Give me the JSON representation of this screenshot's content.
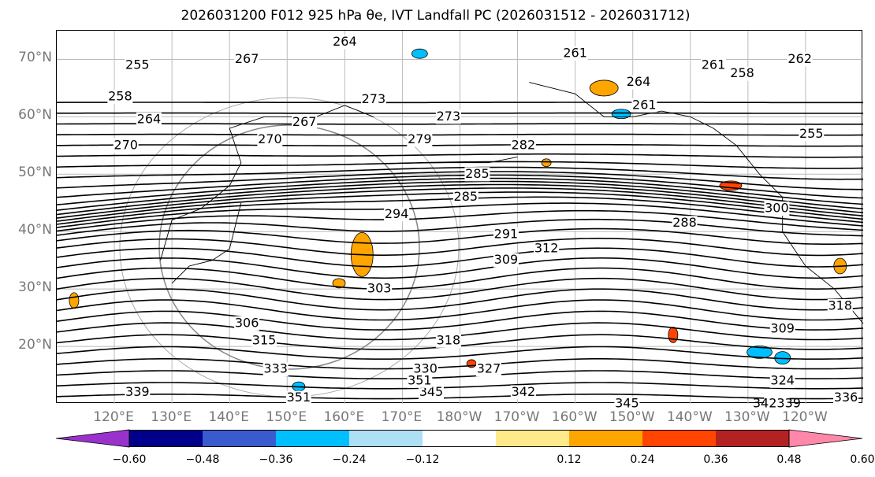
{
  "title": "2026031200 F012 925 hPa θe, IVT Landfall PC (2026031512 - 2026031712)",
  "chart_data": {
    "type": "heatmap",
    "map": "North Pacific, 925 hPa equivalent potential temperature contours with shaded IVT landfall principal component",
    "lat_ticks": [
      "20°N",
      "30°N",
      "40°N",
      "50°N",
      "60°N",
      "70°N"
    ],
    "lon_ticks": [
      "120°E",
      "130°E",
      "140°E",
      "150°E",
      "160°E",
      "170°E",
      "180°W",
      "170°W",
      "160°W",
      "150°W",
      "140°W",
      "130°W",
      "120°W"
    ],
    "contour_labels": [
      {
        "text": "264",
        "lon": 160,
        "lat": 73
      },
      {
        "text": "267",
        "lon": 143,
        "lat": 70
      },
      {
        "text": "255",
        "lon": 124,
        "lat": 69
      },
      {
        "text": "258",
        "lon": 121,
        "lat": 63.5
      },
      {
        "text": "264",
        "lon": 126,
        "lat": 59.5
      },
      {
        "text": "270",
        "lon": 122,
        "lat": 55
      },
      {
        "text": "270",
        "lon": 147,
        "lat": 56
      },
      {
        "text": "267",
        "lon": 153,
        "lat": 59
      },
      {
        "text": "273",
        "lon": 165,
        "lat": 63
      },
      {
        "text": "273",
        "lon": 178,
        "lat": 60
      },
      {
        "text": "279",
        "lon": 173,
        "lat": 56
      },
      {
        "text": "282",
        "lon": -169,
        "lat": 55
      },
      {
        "text": "285",
        "lon": -177,
        "lat": 50
      },
      {
        "text": "285",
        "lon": -179,
        "lat": 46
      },
      {
        "text": "294",
        "lon": 169,
        "lat": 43
      },
      {
        "text": "291",
        "lon": -172,
        "lat": 39.5
      },
      {
        "text": "309",
        "lon": -172,
        "lat": 35
      },
      {
        "text": "312",
        "lon": -165,
        "lat": 37
      },
      {
        "text": "288",
        "lon": -141,
        "lat": 41.5
      },
      {
        "text": "261",
        "lon": -160,
        "lat": 71
      },
      {
        "text": "261",
        "lon": -136,
        "lat": 69
      },
      {
        "text": "258",
        "lon": -131,
        "lat": 67.5
      },
      {
        "text": "264",
        "lon": -149,
        "lat": 66
      },
      {
        "text": "261",
        "lon": -148,
        "lat": 62
      },
      {
        "text": "262",
        "lon": -121,
        "lat": 70
      },
      {
        "text": "255",
        "lon": -119,
        "lat": 57
      },
      {
        "text": "300",
        "lon": -125,
        "lat": 44
      },
      {
        "text": "303",
        "lon": 166,
        "lat": 30
      },
      {
        "text": "306",
        "lon": 143,
        "lat": 24
      },
      {
        "text": "315",
        "lon": 146,
        "lat": 21
      },
      {
        "text": "318",
        "lon": 178,
        "lat": 21
      },
      {
        "text": "330",
        "lon": 174,
        "lat": 16
      },
      {
        "text": "333",
        "lon": 148,
        "lat": 16
      },
      {
        "text": "327",
        "lon": -175,
        "lat": 16
      },
      {
        "text": "342",
        "lon": -169,
        "lat": 12
      },
      {
        "text": "345",
        "lon": 175,
        "lat": 12
      },
      {
        "text": "351",
        "lon": 173,
        "lat": 14
      },
      {
        "text": "351",
        "lon": 152,
        "lat": 11
      },
      {
        "text": "339",
        "lon": 124,
        "lat": 12
      },
      {
        "text": "345",
        "lon": -151,
        "lat": 10
      },
      {
        "text": "324",
        "lon": -124,
        "lat": 14
      },
      {
        "text": "309",
        "lon": -124,
        "lat": 23
      },
      {
        "text": "342339",
        "lon": -125,
        "lat": 10
      },
      {
        "text": "336",
        "lon": -113,
        "lat": 11
      },
      {
        "text": "318",
        "lon": -114,
        "lat": 27
      }
    ],
    "colorbar": {
      "ticks": [
        "−0.60",
        "−0.48",
        "−0.36",
        "−0.24",
        "−0.12",
        "0.12",
        "0.24",
        "0.36",
        "0.48",
        "0.60"
      ],
      "colors": [
        "#9932CC",
        "#00008B",
        "#3A5BCD",
        "#00BFFF",
        "#ADDFF5",
        "#FFFFFF",
        "#FFE98A",
        "#FFA500",
        "#FF4500",
        "#B22222",
        "#FF88AA"
      ]
    }
  }
}
